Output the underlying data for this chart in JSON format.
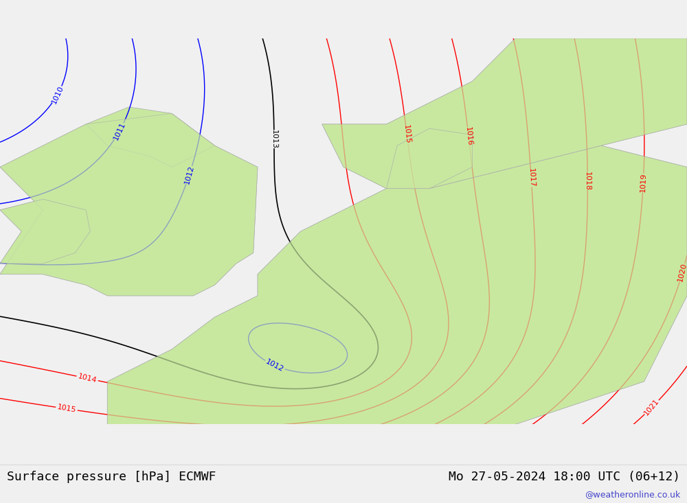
{
  "title_left": "Surface pressure [hPa] ECMWF",
  "title_right": "Mo 27-05-2024 18:00 UTC (06+12)",
  "watermark": "@weatheronline.co.uk",
  "bg_color": "#e8e8e8",
  "land_color": "#c8e8a0",
  "border_color": "#aaaaaa",
  "contour_color_blue": "#0000ff",
  "contour_color_red": "#ff0000",
  "contour_color_black": "#000000",
  "title_fontsize": 13,
  "watermark_color": "#4444cc",
  "bottom_bar_color": "#f0f0f0"
}
